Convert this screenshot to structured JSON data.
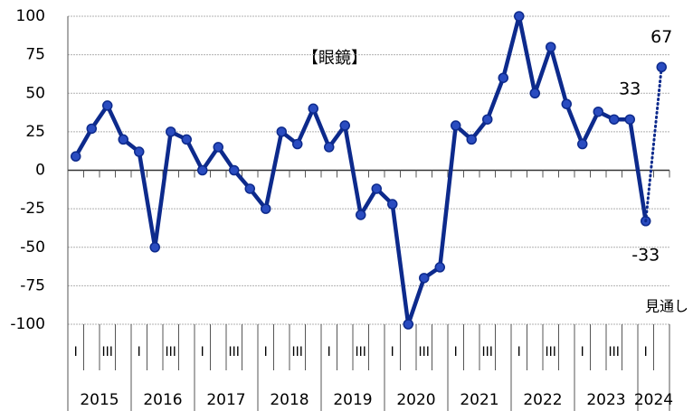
{
  "chart_data": {
    "type": "line",
    "title": "【眼鏡】",
    "categories": [
      "I",
      null,
      "III",
      null,
      "I",
      null,
      "III",
      null,
      "I",
      null,
      "III",
      null,
      "I",
      null,
      "III",
      null,
      "I",
      null,
      "III",
      null,
      "I",
      null,
      "III",
      null,
      "I",
      null,
      "III",
      null,
      "I",
      null,
      "III",
      null,
      "I",
      null,
      "III",
      null,
      "I",
      null
    ],
    "years": [
      "2015",
      "2016",
      "2017",
      "2018",
      "2019",
      "2020",
      "2021",
      "2022",
      "2023",
      "2024"
    ],
    "series": [
      {
        "color": "#0d2a8c",
        "values": [
          9,
          27,
          42,
          20,
          12,
          -50,
          25,
          20,
          0,
          15,
          0,
          -12,
          -25,
          25,
          17,
          40,
          15,
          29,
          -29,
          -12,
          -22,
          -100,
          -70,
          -63,
          29,
          20,
          33,
          60,
          100,
          50,
          80,
          43,
          17,
          38,
          33,
          33,
          -33,
          null
        ],
        "value_labels": [
          null,
          null,
          null,
          null,
          null,
          null,
          null,
          null,
          null,
          null,
          null,
          null,
          null,
          null,
          null,
          null,
          null,
          null,
          null,
          null,
          null,
          null,
          null,
          null,
          null,
          null,
          null,
          null,
          null,
          null,
          null,
          null,
          null,
          null,
          null,
          "33",
          "-33",
          null
        ]
      },
      {
        "name": "見通し",
        "color": "#0d2a8c",
        "dotted": true,
        "values": [
          null,
          null,
          null,
          null,
          null,
          null,
          null,
          null,
          null,
          null,
          null,
          null,
          null,
          null,
          null,
          null,
          null,
          null,
          null,
          null,
          null,
          null,
          null,
          null,
          null,
          null,
          null,
          null,
          null,
          null,
          null,
          null,
          null,
          null,
          null,
          null,
          null,
          67
        ],
        "value_labels": [
          null,
          null,
          null,
          null,
          null,
          null,
          null,
          null,
          null,
          null,
          null,
          null,
          null,
          null,
          null,
          null,
          null,
          null,
          null,
          null,
          null,
          null,
          null,
          null,
          null,
          null,
          null,
          null,
          null,
          null,
          null,
          null,
          null,
          null,
          null,
          null,
          null,
          "67"
        ]
      }
    ],
    "ylim": [
      -100,
      100
    ],
    "yticks": [
      100,
      75,
      50,
      25,
      0,
      -25,
      -50,
      -75,
      -100
    ],
    "grid": true
  }
}
